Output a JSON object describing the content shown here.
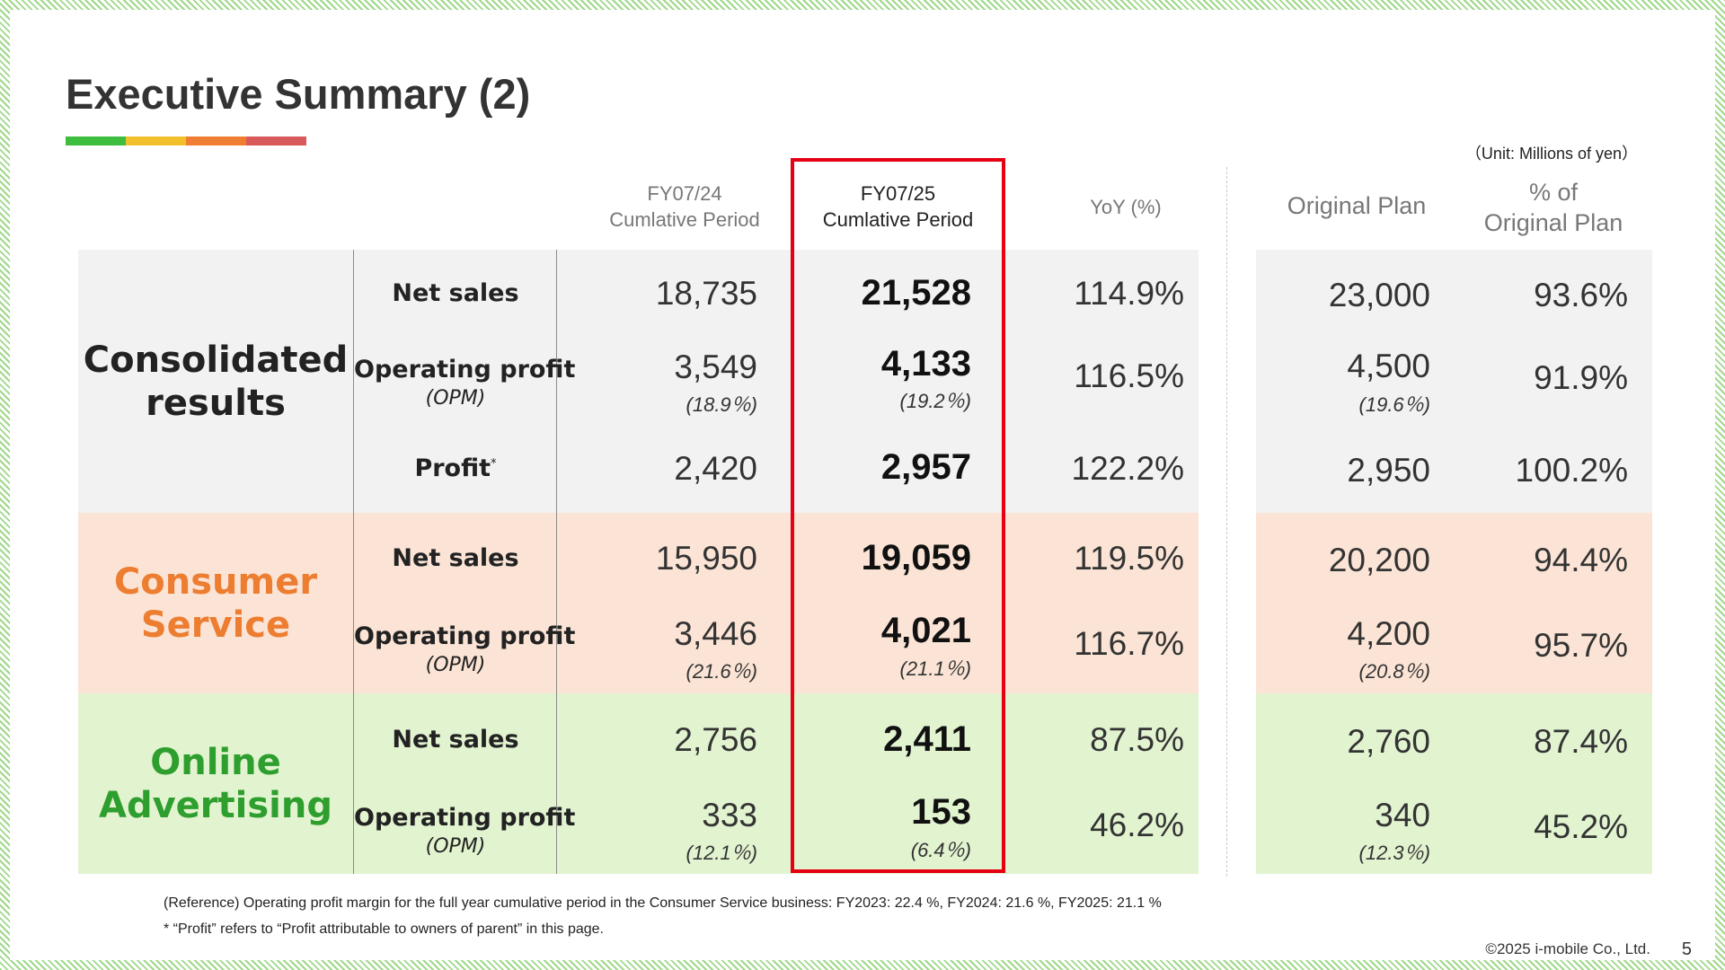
{
  "title": "Executive Summary (2)",
  "title_bar_colors": [
    "#3dbd3d",
    "#f2c02c",
    "#f07e32",
    "#d95a5a"
  ],
  "unit_note": "（Unit: Millions of yen）",
  "columns": {
    "prev": [
      "FY07/24",
      "Cumlative Period"
    ],
    "curr": [
      "FY07/25",
      "Cumlative Period"
    ],
    "yoy": "YoY (%)",
    "plan": "Original Plan",
    "pct_plan": [
      "% of",
      "Original Plan"
    ]
  },
  "segments": [
    {
      "name_lines": [
        "Consolidated",
        "results"
      ],
      "color": "#222222",
      "bg": "#f2f2f2",
      "rows": [
        {
          "label": "Net sales",
          "prev": "18,735",
          "curr": "21,528",
          "yoy": "114.9%",
          "plan": "23,000",
          "pct": "93.6%"
        },
        {
          "label": "Operating profit",
          "sublabel": "(OPM)",
          "prev": "3,549",
          "prev_sub": "(18.9％)",
          "curr": "4,133",
          "curr_sub": "(19.2％)",
          "yoy": "116.5%",
          "plan": "4,500",
          "plan_sub": "(19.6％)",
          "pct": "91.9%"
        },
        {
          "label": "Profit",
          "label_mark": "*",
          "prev": "2,420",
          "curr": "2,957",
          "yoy": "122.2%",
          "plan": "2,950",
          "pct": "100.2%"
        }
      ]
    },
    {
      "name_lines": [
        "Consumer",
        "Service"
      ],
      "color": "#ed7d31",
      "bg": "#fbe4d5",
      "rows": [
        {
          "label": "Net sales",
          "prev": "15,950",
          "curr": "19,059",
          "yoy": "119.5%",
          "plan": "20,200",
          "pct": "94.4%"
        },
        {
          "label": "Operating profit",
          "sublabel": "(OPM)",
          "prev": "3,446",
          "prev_sub": "(21.6％)",
          "curr": "4,021",
          "curr_sub": "(21.1％)",
          "yoy": "116.7%",
          "plan": "4,200",
          "plan_sub": "(20.8％)",
          "pct": "95.7%"
        }
      ]
    },
    {
      "name_lines": [
        "Online",
        "Advertising"
      ],
      "color": "#2e9e2e",
      "bg": "#e2f3d0",
      "rows": [
        {
          "label": "Net sales",
          "prev": "2,756",
          "curr": "2,411",
          "yoy": "87.5%",
          "plan": "2,760",
          "pct": "87.4%"
        },
        {
          "label": "Operating profit",
          "sublabel": "(OPM)",
          "prev": "333",
          "prev_sub": "(12.1％)",
          "curr": "153",
          "curr_sub": "(6.4％)",
          "yoy": "46.2%",
          "plan": "340",
          "plan_sub": "(12.3％)",
          "pct": "45.2%"
        }
      ]
    }
  ],
  "footnotes": [
    "(Reference) Operating profit margin for the full year cumulative period in the Consumer Service business: FY2023: 22.4 %, FY2024: 21.6 %, FY2025: 21.1 %",
    "* “Profit” refers to “Profit attributable to owners of parent” in this page."
  ],
  "copyright": "©2025 i-mobile Co., Ltd.",
  "page_number": "5",
  "highlight_color": "#e60012"
}
